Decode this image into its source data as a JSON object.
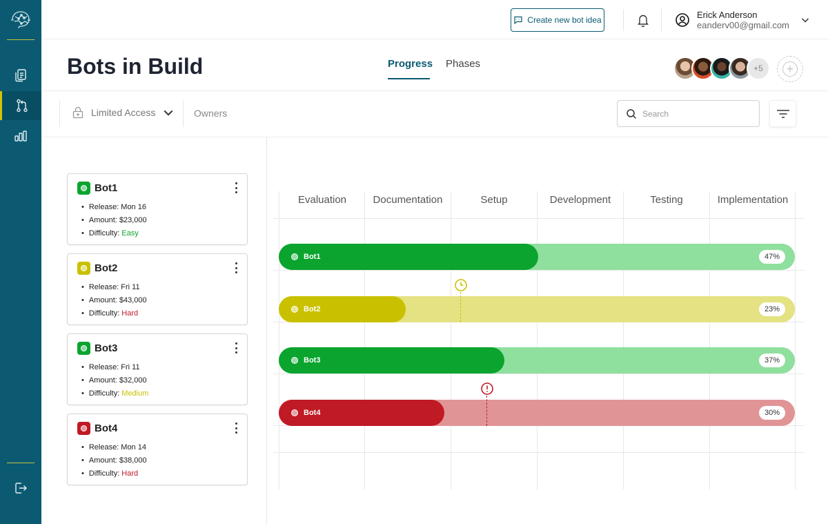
{
  "colors": {
    "sidebar": "#0b5a72",
    "accent": "#0b5a72",
    "green": "#0aa42e",
    "green_light": "#8fdf9e",
    "yellow": "#c9c100",
    "yellow_light": "#e4e283",
    "red": "#c01a25",
    "red_light": "#e19496"
  },
  "sidebar": {
    "items": [
      {
        "icon": "documents-icon",
        "active": false
      },
      {
        "icon": "git-branch-icon",
        "active": true
      },
      {
        "icon": "bar-chart-icon",
        "active": false
      }
    ],
    "logout_icon": "logout-icon"
  },
  "topbar": {
    "create_label": "Create new bot idea",
    "user": {
      "name": "Erick Anderson",
      "email": "eanderv00@gmail.com"
    }
  },
  "header": {
    "title": "Bots in Build",
    "tabs": [
      {
        "label": "Progress",
        "active": true
      },
      {
        "label": "Phases",
        "active": false
      }
    ],
    "members_more": "+5"
  },
  "filters": {
    "access": "Limited Access",
    "owners": "Owners",
    "search_placeholder": "Search"
  },
  "bots": [
    {
      "name": "Bot1",
      "release_label": "Release:",
      "release": "Mon 16",
      "amount_label": "Amount:",
      "amount": "$23,000",
      "difficulty_label": "Difficulty:",
      "difficulty": "Easy",
      "status": "green",
      "progress": 47,
      "progress_text": "47%"
    },
    {
      "name": "Bot2",
      "release_label": "Release:",
      "release": "Fri 11",
      "amount_label": "Amount:",
      "amount": "$43,000",
      "difficulty_label": "Difficulty:",
      "difficulty": "Hard",
      "status": "yellow",
      "progress": 23,
      "progress_text": "23%"
    },
    {
      "name": "Bot3",
      "release_label": "Release:",
      "release": "Fri 11",
      "amount_label": "Amount:",
      "amount": "$32,000",
      "difficulty_label": "Difficulty:",
      "difficulty": "Medium",
      "status": "green",
      "progress": 37,
      "progress_text": "37%"
    },
    {
      "name": "Bot4",
      "release_label": "Release:",
      "release": "Mon 14",
      "amount_label": "Amount:",
      "amount": "$38,000",
      "difficulty_label": "Difficulty:",
      "difficulty": "Hard",
      "status": "red",
      "progress": 30,
      "progress_text": "30%"
    }
  ],
  "phases": [
    "Evaluation",
    "Documentation",
    "Setup",
    "Development",
    "Testing",
    "Implementation"
  ],
  "markers": [
    {
      "bot": "Bot2",
      "icon": "clock-icon"
    },
    {
      "bot": "Bot4",
      "icon": "alert-icon"
    }
  ]
}
